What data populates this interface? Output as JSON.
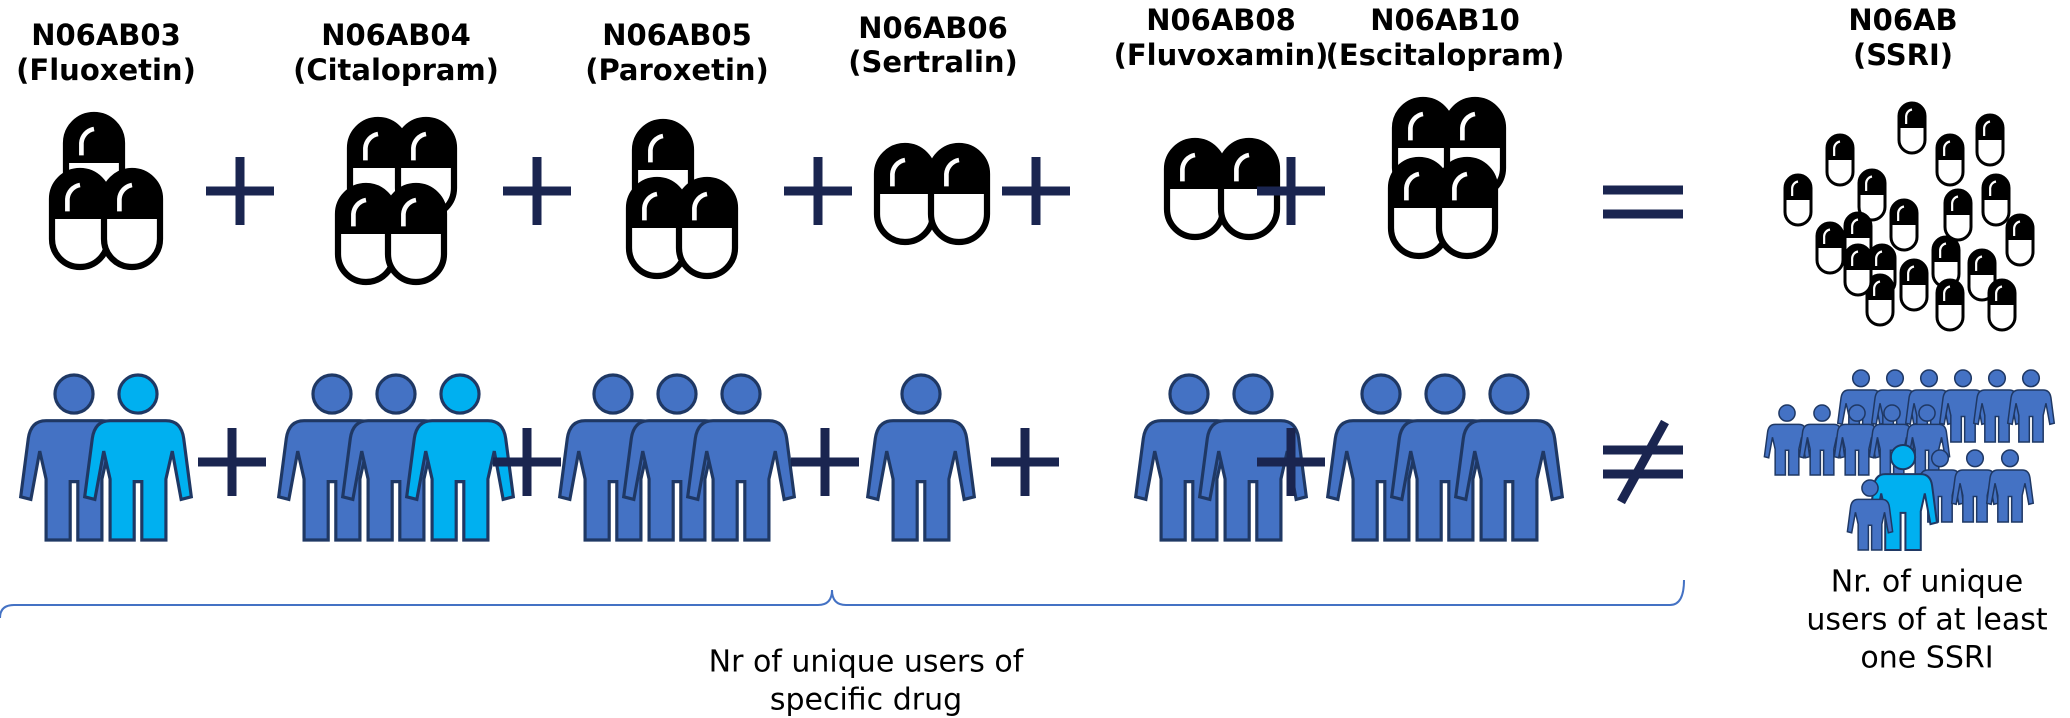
{
  "drugs": [
    {
      "code": "N06AB03",
      "name": "(Fluoxetin)"
    },
    {
      "code": "N06AB04",
      "name": "(Citalopram)"
    },
    {
      "code": "N06AB05",
      "name": "(Paroxetin)"
    },
    {
      "code": "N06AB06",
      "name": "(Sertralin)"
    },
    {
      "code": "N06AB08",
      "name": "(Fluvoxamin)"
    },
    {
      "code": "N06AB10",
      "name": "(Escitalopram)"
    }
  ],
  "total": {
    "code": "N06AB",
    "name": "(SSRI)"
  },
  "caption_specific": [
    "Nr of unique users of",
    "specific drug"
  ],
  "caption_total": [
    "Nr. of unique",
    "users of at least",
    "one SSRI"
  ]
}
